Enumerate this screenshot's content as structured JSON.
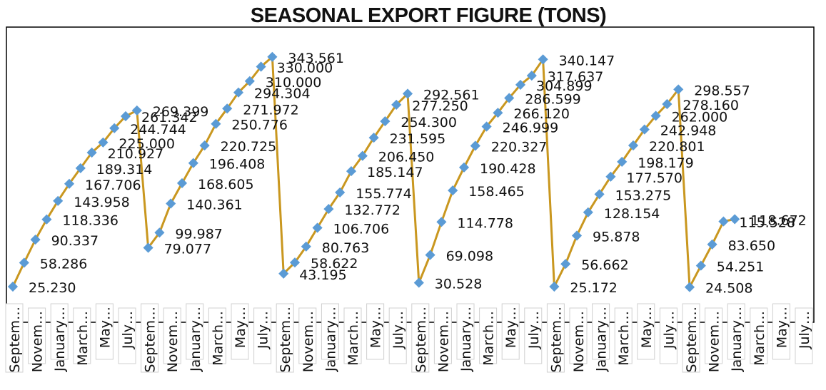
{
  "chart_data": {
    "type": "line",
    "title": "SEASONAL EXPORT FIGURE (TONS)",
    "xlabel": "",
    "ylabel": "",
    "ylim": [
      0,
      370
    ],
    "grid": false,
    "legend": "none",
    "line_color": "#C9971F",
    "marker_color": "#5B9BD5",
    "tick_labels": [
      "Septem…",
      "Novem…",
      "January…",
      "March…",
      "May…",
      "July…",
      "Septem…",
      "Novem…",
      "January…",
      "March…",
      "May…",
      "July…",
      "Septem…",
      "Novem…",
      "January…",
      "March…",
      "May…",
      "July…",
      "Septem…",
      "Novem…",
      "January…",
      "March…",
      "May…",
      "July…",
      "Septem…",
      "Novem…",
      "January…",
      "March…",
      "May…",
      "July…",
      "Septem…",
      "Novem…",
      "January…",
      "March…",
      "May…",
      "July…"
    ],
    "values": [
      25.23,
      58.286,
      90.337,
      118.336,
      143.958,
      167.706,
      189.314,
      210.927,
      225.0,
      244.744,
      261.342,
      269.399,
      79.077,
      99.987,
      140.361,
      168.605,
      196.408,
      220.725,
      250.776,
      271.972,
      294.304,
      310.0,
      330.0,
      343.561,
      43.195,
      58.622,
      80.763,
      106.706,
      132.772,
      155.774,
      185.147,
      206.45,
      231.595,
      254.3,
      277.25,
      292.561,
      30.528,
      69.098,
      114.778,
      158.465,
      190.428,
      220.327,
      246.999,
      266.12,
      286.599,
      304.899,
      317.637,
      340.147,
      25.172,
      56.662,
      95.878,
      128.154,
      153.275,
      177.57,
      198.179,
      220.801,
      242.948,
      262.0,
      278.16,
      298.557,
      24.508,
      54.251,
      83.65,
      115.528,
      118.672
    ],
    "labels": [
      "25.230",
      "58.286",
      "90.337",
      "118.336",
      "143.958",
      "167.706",
      "189.314",
      "210.927",
      "225.000",
      "244.744",
      "261.342",
      "269.399",
      "79.077",
      "99.987",
      "140.361",
      "168.605",
      "196.408",
      "220.725",
      "250.776",
      "271.972",
      "294.304",
      "310.000",
      "330.000",
      "343.561",
      "43.195",
      "58.622",
      "80.763",
      "106.706",
      "132.772",
      "155.774",
      "185.147",
      "206.450",
      "231.595",
      "254.300",
      "277.250",
      "292.561",
      "30.528",
      "69.098",
      "114.778",
      "158.465",
      "190.428",
      "220.327",
      "246.999",
      "266.120",
      "286.599",
      "304.899",
      "317.637",
      "340.147",
      "25.172",
      "56.662",
      "95.878",
      "128.154",
      "153.275",
      "177.570",
      "198.179",
      "220.801",
      "242.948",
      "262.000",
      "278.160",
      "298.557",
      "24.508",
      "54.251",
      "83.650",
      "115.528",
      "118.672"
    ]
  }
}
